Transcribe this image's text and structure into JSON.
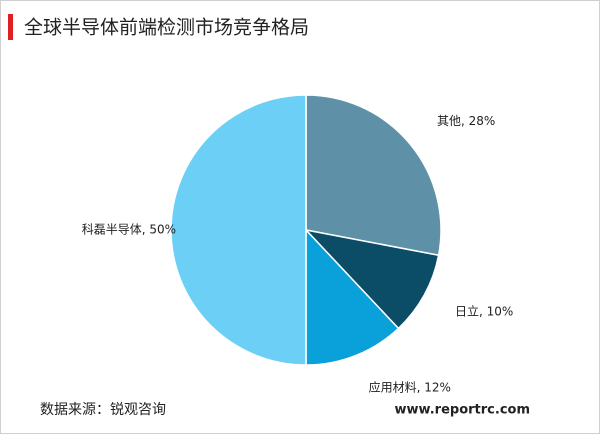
{
  "chart_data": {
    "type": "pie",
    "title": "全球半导体前端检测市场竞争格局",
    "values": [
      28,
      10,
      12,
      50
    ],
    "value_labels": [
      "其他, 28%",
      "日立, 10%",
      "应用材料, 12%",
      "科磊半导体, 50%"
    ],
    "colors": [
      "#5e91a8",
      "#0b4d66",
      "#0aa0d9",
      "#6ccff6"
    ],
    "source": "数据来源：锐观咨询",
    "website": "www.reportrc.com"
  }
}
